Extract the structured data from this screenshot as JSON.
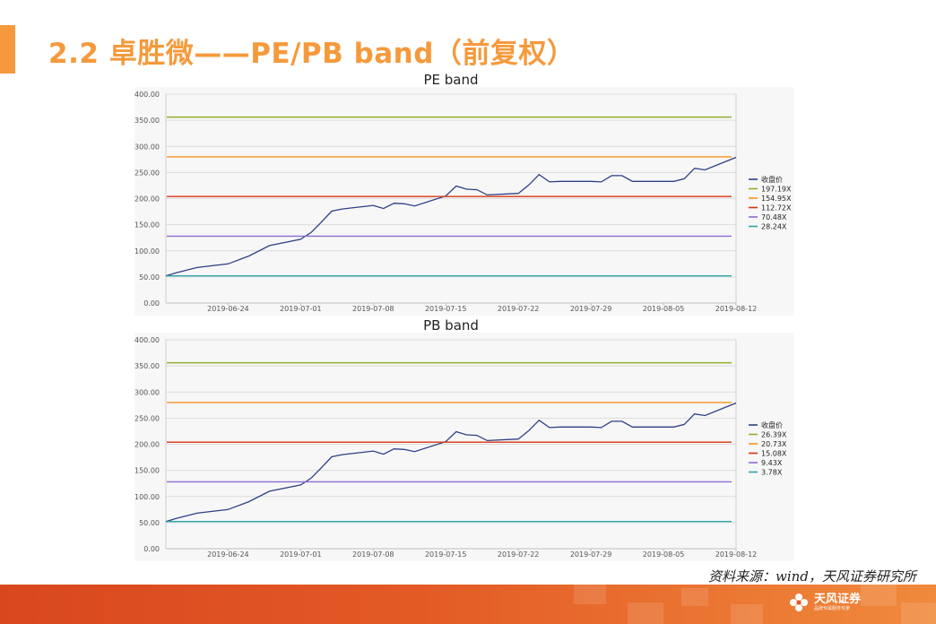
{
  "header": {
    "title": "2.2 卓胜微——PE/PB band（前复权）"
  },
  "source": "资料来源：wind，天风证券研究所",
  "footer": {
    "logo_name": "天风证券",
    "logo_sub": "品牌专属服务专家"
  },
  "colors": {
    "accent": "#f59a3c",
    "price": "#2e3f86",
    "band1": "#8fb02e",
    "band2": "#f5941e",
    "band3": "#d9340f",
    "band4": "#8c6bd1",
    "band5": "#2aa5a6"
  },
  "chart_data": [
    {
      "type": "line",
      "title": "PE band",
      "ylim": [
        0,
        400
      ],
      "yticks": [
        "0.00",
        "50.00",
        "100.00",
        "150.00",
        "200.00",
        "250.00",
        "300.00",
        "350.00",
        "400.00"
      ],
      "xlim": [
        "2019-06-18",
        "2019-08-12"
      ],
      "xticks": [
        "2019-06-24",
        "2019-07-01",
        "2019-07-08",
        "2019-07-15",
        "2019-07-22",
        "2019-07-29",
        "2019-08-05",
        "2019-08-12"
      ],
      "legend_position": "right",
      "series": [
        {
          "name": "收盘价",
          "color": "#2e3f86",
          "x": [
            "2019-06-18",
            "2019-06-19",
            "2019-06-21",
            "2019-06-24",
            "2019-06-26",
            "2019-06-28",
            "2019-07-01",
            "2019-07-02",
            "2019-07-03",
            "2019-07-04",
            "2019-07-05",
            "2019-07-08",
            "2019-07-09",
            "2019-07-10",
            "2019-07-11",
            "2019-07-12",
            "2019-07-15",
            "2019-07-16",
            "2019-07-17",
            "2019-07-18",
            "2019-07-19",
            "2019-07-22",
            "2019-07-23",
            "2019-07-24",
            "2019-07-25",
            "2019-07-26",
            "2019-07-29",
            "2019-07-30",
            "2019-07-31",
            "2019-08-01",
            "2019-08-02",
            "2019-08-05",
            "2019-08-06",
            "2019-08-07",
            "2019-08-08",
            "2019-08-09",
            "2019-08-12"
          ],
          "y": [
            52,
            58,
            68,
            75,
            90,
            110,
            122,
            135,
            155,
            176,
            180,
            187,
            181,
            191,
            190,
            186,
            205,
            224,
            218,
            217,
            207,
            210,
            226,
            246,
            232,
            233,
            233,
            232,
            244,
            244,
            233,
            233,
            233,
            238,
            258,
            255,
            279
          ]
        },
        {
          "name": "197.19X",
          "color": "#8fb02e",
          "y": [
            356
          ]
        },
        {
          "name": "154.95X",
          "color": "#f5941e",
          "y": [
            280
          ]
        },
        {
          "name": "112.72X",
          "color": "#d9340f",
          "y": [
            204
          ]
        },
        {
          "name": "70.48X",
          "color": "#8c6bd1",
          "y": [
            128
          ]
        },
        {
          "name": "28.24X",
          "color": "#2aa5a6",
          "y": [
            52
          ]
        }
      ]
    },
    {
      "type": "line",
      "title": "PB band",
      "ylim": [
        0,
        400
      ],
      "yticks": [
        "0.00",
        "50.00",
        "100.00",
        "150.00",
        "200.00",
        "250.00",
        "300.00",
        "350.00",
        "400.00"
      ],
      "xlim": [
        "2019-06-18",
        "2019-08-12"
      ],
      "xticks": [
        "2019-06-24",
        "2019-07-01",
        "2019-07-08",
        "2019-07-15",
        "2019-07-22",
        "2019-07-29",
        "2019-08-05",
        "2019-08-12"
      ],
      "legend_position": "right",
      "series": [
        {
          "name": "收盘价",
          "color": "#2e3f86",
          "x": [
            "2019-06-18",
            "2019-06-19",
            "2019-06-21",
            "2019-06-24",
            "2019-06-26",
            "2019-06-28",
            "2019-07-01",
            "2019-07-02",
            "2019-07-03",
            "2019-07-04",
            "2019-07-05",
            "2019-07-08",
            "2019-07-09",
            "2019-07-10",
            "2019-07-11",
            "2019-07-12",
            "2019-07-15",
            "2019-07-16",
            "2019-07-17",
            "2019-07-18",
            "2019-07-19",
            "2019-07-22",
            "2019-07-23",
            "2019-07-24",
            "2019-07-25",
            "2019-07-26",
            "2019-07-29",
            "2019-07-30",
            "2019-07-31",
            "2019-08-01",
            "2019-08-02",
            "2019-08-05",
            "2019-08-06",
            "2019-08-07",
            "2019-08-08",
            "2019-08-09",
            "2019-08-12"
          ],
          "y": [
            52,
            58,
            68,
            75,
            90,
            110,
            122,
            135,
            155,
            176,
            180,
            187,
            181,
            191,
            190,
            186,
            205,
            224,
            218,
            217,
            207,
            210,
            226,
            246,
            232,
            233,
            233,
            232,
            244,
            244,
            233,
            233,
            233,
            238,
            258,
            255,
            279
          ]
        },
        {
          "name": "26.39X",
          "color": "#8fb02e",
          "y": [
            356
          ]
        },
        {
          "name": "20.73X",
          "color": "#f5941e",
          "y": [
            280
          ]
        },
        {
          "name": "15.08X",
          "color": "#d9340f",
          "y": [
            204
          ]
        },
        {
          "name": "9.43X",
          "color": "#8c6bd1",
          "y": [
            128
          ]
        },
        {
          "name": "3.78X",
          "color": "#2aa5a6",
          "y": [
            52
          ]
        }
      ]
    }
  ]
}
